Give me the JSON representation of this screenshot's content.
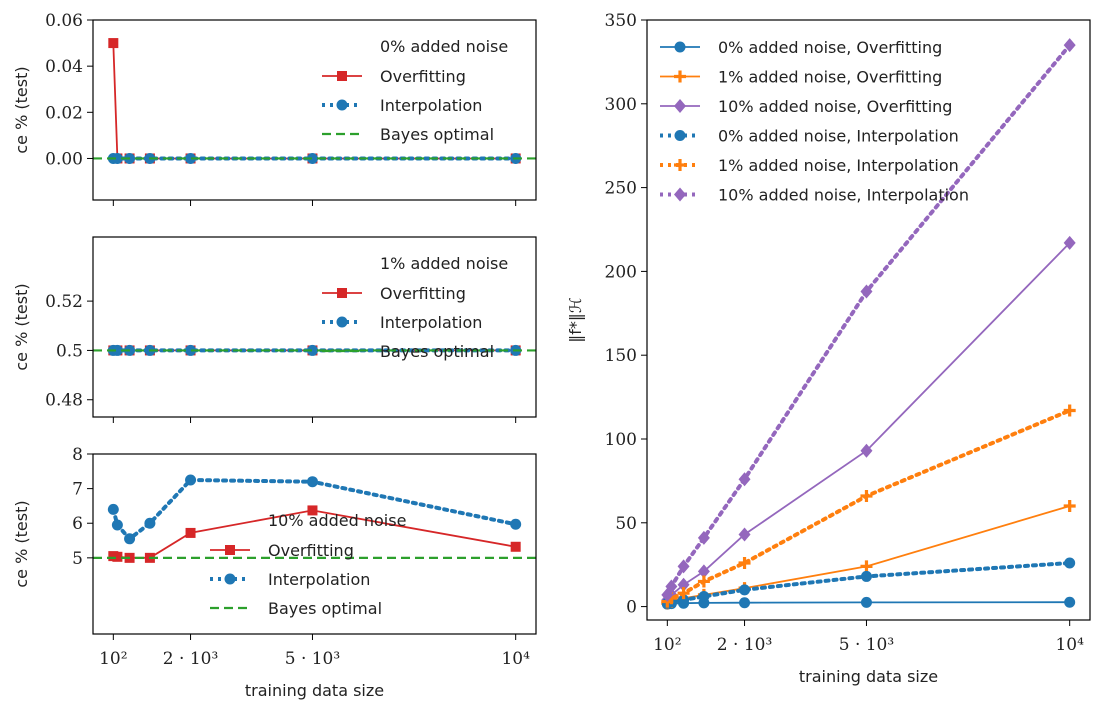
{
  "colors": {
    "red": "#d62728",
    "blue": "#1f77b4",
    "green": "#2ca02c",
    "orange": "#ff7f0e",
    "purple": "#9467bd"
  },
  "chart_data": [
    {
      "type": "line",
      "legend_title": "0% added noise",
      "ylabel": "ce % (test)",
      "xlabel": "",
      "xscale": "linear",
      "xlim": [
        -400,
        10500
      ],
      "ylim": [
        -0.018,
        0.06
      ],
      "yticks": [
        0,
        0.02,
        0.04,
        0.06
      ],
      "ytick_labels": [
        "0.00",
        "0.02",
        "0.04",
        "0.06"
      ],
      "legend_loc": "upper right",
      "x": [
        100,
        200,
        500,
        1000,
        2000,
        5000,
        10000
      ],
      "series": [
        {
          "name": "Overfitting",
          "color": "red",
          "style": "solid",
          "marker": "square",
          "values": [
            0.05,
            0,
            0,
            0,
            0,
            0,
            0
          ]
        },
        {
          "name": "Interpolation",
          "color": "blue",
          "style": "dotted",
          "marker": "circle",
          "values": [
            0,
            0,
            0,
            0,
            0,
            0,
            0
          ]
        },
        {
          "name": "Bayes optimal",
          "color": "green",
          "style": "dashed",
          "marker": "none",
          "hline": 0
        }
      ]
    },
    {
      "type": "line",
      "legend_title": "1% added noise",
      "ylabel": "ce % (test)",
      "xlabel": "",
      "xscale": "linear",
      "xlim": [
        -400,
        10500
      ],
      "ylim": [
        0.473,
        0.546
      ],
      "yticks": [
        0.48,
        0.5,
        0.52
      ],
      "ytick_labels": [
        "0.48",
        "0.5",
        "0.52"
      ],
      "legend_loc": "upper right",
      "x": [
        100,
        200,
        500,
        1000,
        2000,
        5000,
        10000
      ],
      "series": [
        {
          "name": "Overfitting",
          "color": "red",
          "style": "solid",
          "marker": "square",
          "values": [
            0.5,
            0.5,
            0.5,
            0.5,
            0.5,
            0.5,
            0.5
          ]
        },
        {
          "name": "Interpolation",
          "color": "blue",
          "style": "dotted",
          "marker": "circle",
          "values": [
            0.5,
            0.5,
            0.5,
            0.5,
            0.5,
            0.5,
            0.5
          ]
        },
        {
          "name": "Bayes optimal",
          "color": "green",
          "style": "dashed",
          "marker": "none",
          "hline": 0.5
        }
      ]
    },
    {
      "type": "line",
      "legend_title": "10% added noise",
      "ylabel": "ce % (test)",
      "xlabel": "training data size",
      "xscale": "linear",
      "xlim": [
        -400,
        10500
      ],
      "ylim": [
        2.8,
        8.0
      ],
      "yticks": [
        5,
        6,
        7,
        8
      ],
      "ytick_labels": [
        "5",
        "6",
        "7",
        "8"
      ],
      "xticks": [
        100,
        2000,
        5000,
        10000
      ],
      "xtick_labels": [
        "10²",
        "2 · 10³",
        "5 · 10³",
        "10⁴"
      ],
      "legend_loc": "lower center",
      "x": [
        100,
        200,
        500,
        1000,
        2000,
        5000,
        10000
      ],
      "series": [
        {
          "name": "Overfitting",
          "color": "red",
          "style": "solid",
          "marker": "square",
          "values": [
            5.05,
            5.03,
            5.0,
            5.0,
            5.72,
            6.37,
            5.32
          ]
        },
        {
          "name": "Interpolation",
          "color": "blue",
          "style": "dotted",
          "marker": "circle",
          "values": [
            6.4,
            5.95,
            5.55,
            6.0,
            7.25,
            7.2,
            5.97
          ]
        },
        {
          "name": "Bayes optimal",
          "color": "green",
          "style": "dashed",
          "marker": "none",
          "hline": 5.0
        }
      ]
    },
    {
      "type": "line",
      "ylabel": "‖f*‖ℋ",
      "xlabel": "training data size",
      "xscale": "linear",
      "xlim": [
        -400,
        10500
      ],
      "ylim": [
        -8,
        350
      ],
      "yticks": [
        0,
        50,
        100,
        150,
        200,
        250,
        300,
        350
      ],
      "ytick_labels": [
        "0",
        "50",
        "100",
        "150",
        "200",
        "250",
        "300",
        "350"
      ],
      "xticks": [
        100,
        2000,
        5000,
        10000
      ],
      "xtick_labels": [
        "10²",
        "2 · 10³",
        "5 · 10³",
        "10⁴"
      ],
      "legend_loc": "upper left",
      "x": [
        100,
        200,
        500,
        1000,
        2000,
        5000,
        10000
      ],
      "series": [
        {
          "name": "0% added noise, Overfitting",
          "color": "blue",
          "style": "solid",
          "marker": "circle",
          "values": [
            1.5,
            1.8,
            2.0,
            2.2,
            2.3,
            2.5,
            2.6
          ]
        },
        {
          "name": "1% added noise, Overfitting",
          "color": "orange",
          "style": "solid",
          "marker": "plus",
          "values": [
            2,
            3,
            5,
            7,
            11,
            24,
            60
          ]
        },
        {
          "name": "10% added noise, Overfitting",
          "color": "purple",
          "style": "solid",
          "marker": "diamond",
          "values": [
            4,
            7,
            13,
            21,
            43,
            93,
            217
          ]
        },
        {
          "name": "0% added noise, Interpolation",
          "color": "blue",
          "style": "dotted",
          "marker": "circle",
          "values": [
            2,
            3,
            4,
            6,
            10,
            18,
            26
          ]
        },
        {
          "name": "1% added noise, Interpolation",
          "color": "orange",
          "style": "dotted",
          "marker": "plus",
          "values": [
            3,
            5,
            8,
            15,
            26,
            66,
            117
          ]
        },
        {
          "name": "10% added noise, Interpolation",
          "color": "purple",
          "style": "dotted",
          "marker": "diamond",
          "values": [
            7,
            12,
            24,
            41,
            76,
            188,
            335
          ]
        }
      ]
    }
  ]
}
